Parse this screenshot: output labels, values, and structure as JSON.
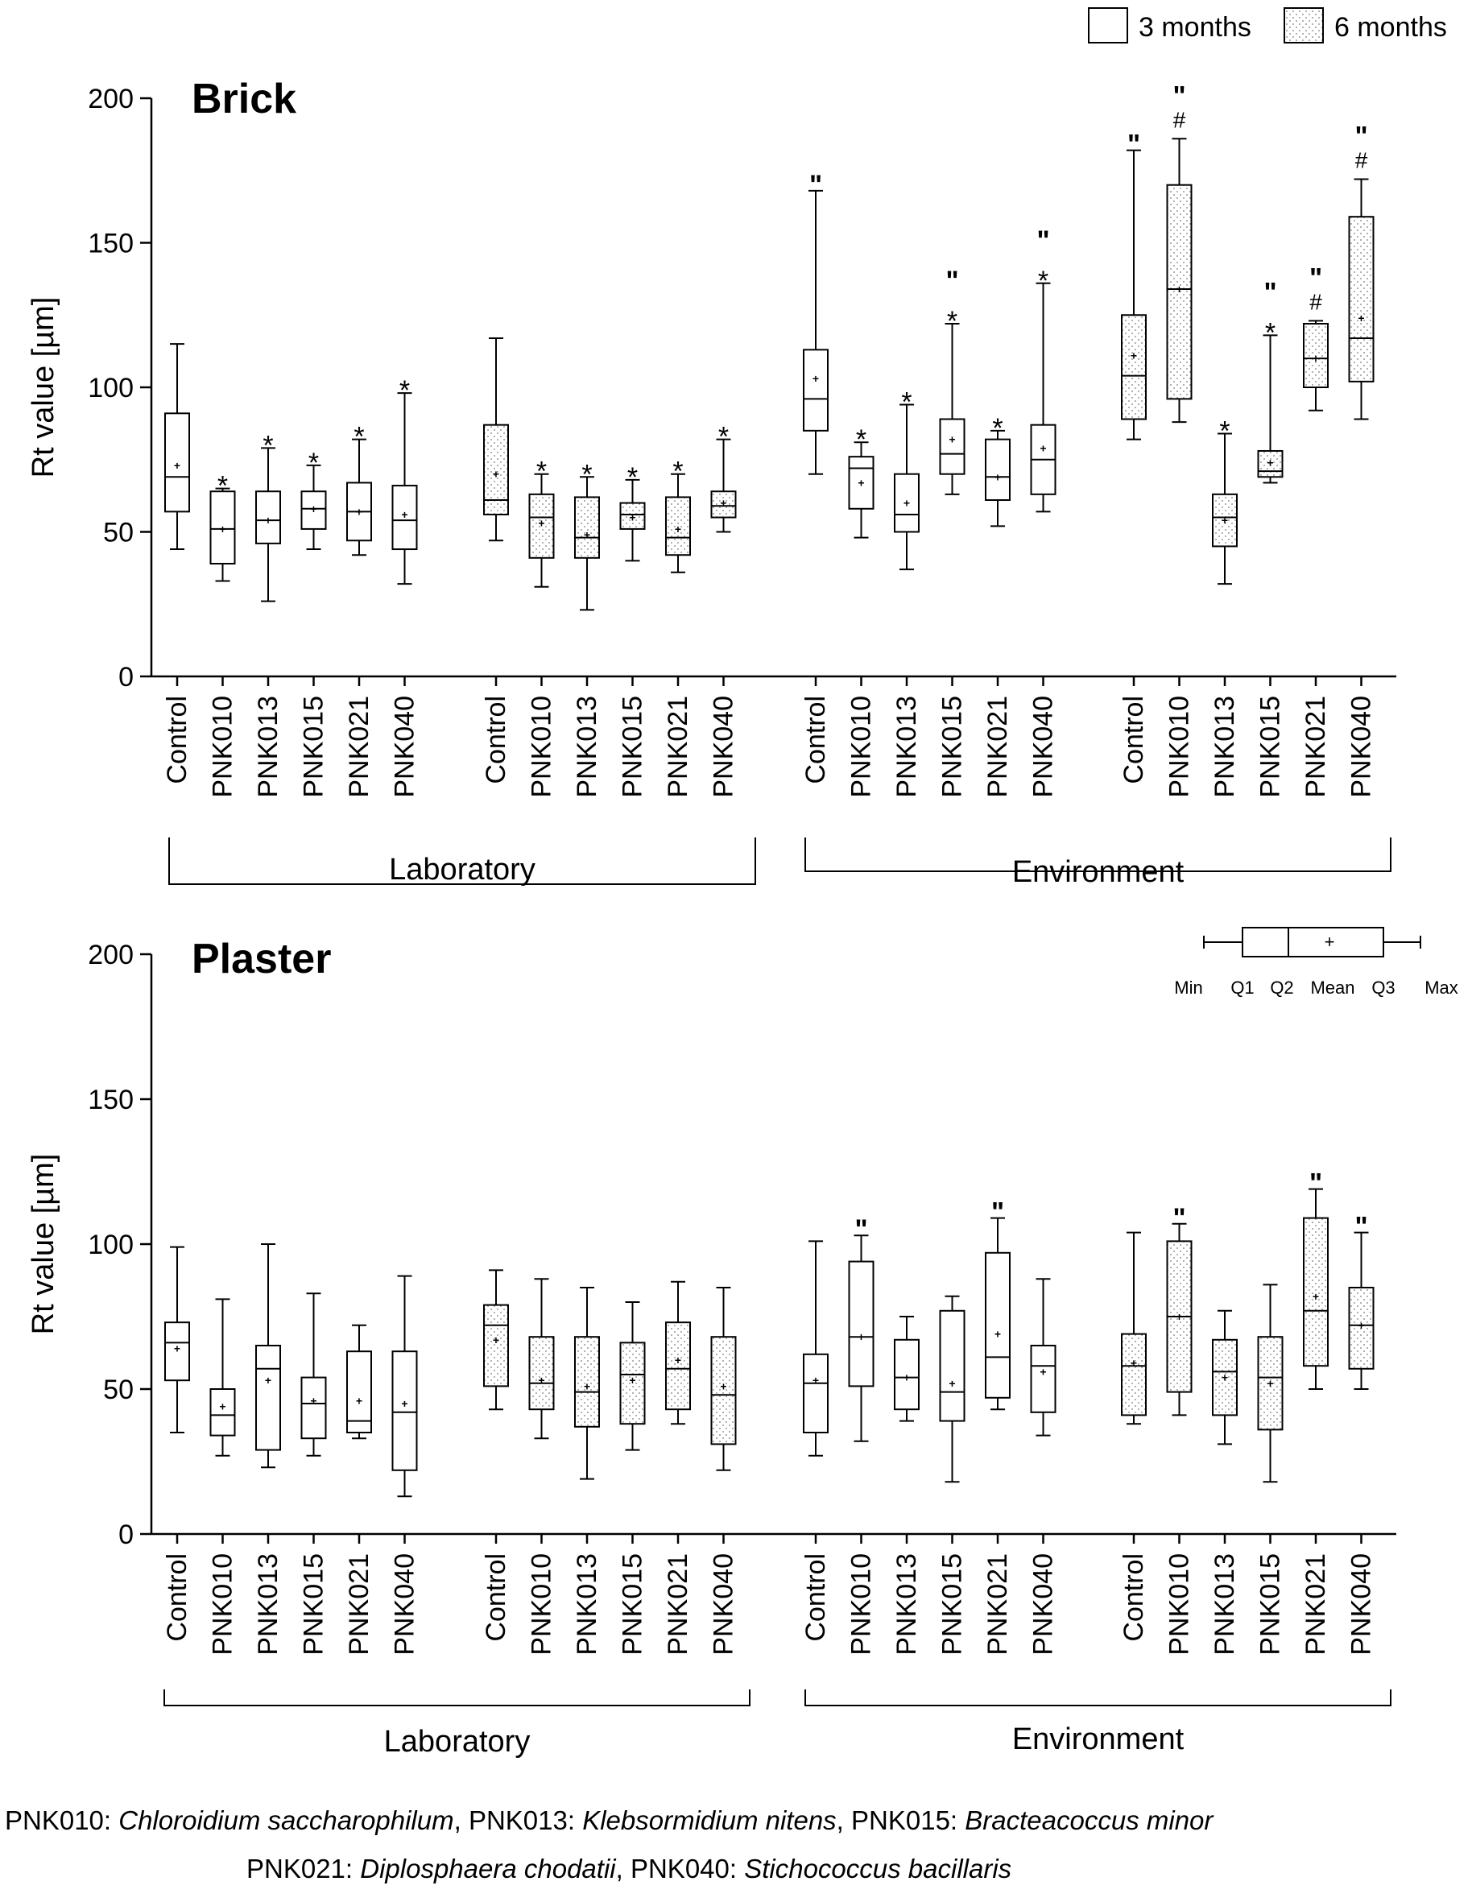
{
  "legend": {
    "items": [
      {
        "label": "3 months",
        "fill": "plain"
      },
      {
        "label": "6 months",
        "fill": "dotted"
      }
    ]
  },
  "colors": {
    "stroke": "#000000",
    "background": "#ffffff",
    "dots": "#7a7a7a"
  },
  "key": {
    "labels": [
      "Min",
      "Q1",
      "Q2",
      "Mean",
      "Q3",
      "Max"
    ]
  },
  "chart_data": [
    {
      "type": "box",
      "title": "Brick",
      "ylabel": "Rt value [µm]",
      "ylim": [
        0,
        200
      ],
      "yticks": [
        0,
        50,
        100,
        150,
        200
      ],
      "grid": false,
      "categories": [
        "Control",
        "PNK010",
        "PNK013",
        "PNK015",
        "PNK021",
        "PNK040"
      ],
      "groups": [
        {
          "label": "Laboratory",
          "blocks": [
            {
              "period": "3 months",
              "boxes": [
                {
                  "category": "Control",
                  "min": 44,
                  "q1": 57,
                  "median": 69,
                  "mean": 73,
                  "q3": 91,
                  "max": 115,
                  "marks": []
                },
                {
                  "category": "PNK010",
                  "min": 33,
                  "q1": 39,
                  "median": 51,
                  "mean": 51,
                  "q3": 64,
                  "max": 65,
                  "marks": [
                    "*"
                  ]
                },
                {
                  "category": "PNK013",
                  "min": 26,
                  "q1": 46,
                  "median": 54,
                  "mean": 54,
                  "q3": 64,
                  "max": 79,
                  "marks": [
                    "*"
                  ]
                },
                {
                  "category": "PNK015",
                  "min": 44,
                  "q1": 51,
                  "median": 58,
                  "mean": 58,
                  "q3": 64,
                  "max": 73,
                  "marks": [
                    "*"
                  ]
                },
                {
                  "category": "PNK021",
                  "min": 42,
                  "q1": 47,
                  "median": 57,
                  "mean": 57,
                  "q3": 67,
                  "max": 82,
                  "marks": [
                    "*"
                  ]
                },
                {
                  "category": "PNK040",
                  "min": 32,
                  "q1": 44,
                  "median": 54,
                  "mean": 56,
                  "q3": 66,
                  "max": 98,
                  "marks": [
                    "*"
                  ]
                }
              ]
            },
            {
              "period": "6 months",
              "boxes": [
                {
                  "category": "Control",
                  "min": 47,
                  "q1": 56,
                  "median": 61,
                  "mean": 70,
                  "q3": 87,
                  "max": 117,
                  "marks": []
                },
                {
                  "category": "PNK010",
                  "min": 31,
                  "q1": 41,
                  "median": 55,
                  "mean": 53,
                  "q3": 63,
                  "max": 70,
                  "marks": [
                    "*"
                  ]
                },
                {
                  "category": "PNK013",
                  "min": 23,
                  "q1": 41,
                  "median": 48,
                  "mean": 49,
                  "q3": 62,
                  "max": 69,
                  "marks": [
                    "*"
                  ]
                },
                {
                  "category": "PNK015",
                  "min": 40,
                  "q1": 51,
                  "median": 56,
                  "mean": 55,
                  "q3": 60,
                  "max": 68,
                  "marks": [
                    "*"
                  ]
                },
                {
                  "category": "PNK021",
                  "min": 36,
                  "q1": 42,
                  "median": 48,
                  "mean": 51,
                  "q3": 62,
                  "max": 70,
                  "marks": [
                    "*"
                  ]
                },
                {
                  "category": "PNK040",
                  "min": 50,
                  "q1": 55,
                  "median": 59,
                  "mean": 60,
                  "q3": 64,
                  "max": 82,
                  "marks": [
                    "*"
                  ]
                }
              ]
            }
          ]
        },
        {
          "label": "Environment",
          "blocks": [
            {
              "period": "3 months",
              "boxes": [
                {
                  "category": "Control",
                  "min": 70,
                  "q1": 85,
                  "median": 96,
                  "mean": 103,
                  "q3": 113,
                  "max": 168,
                  "marks": [
                    "\""
                  ]
                },
                {
                  "category": "PNK010",
                  "min": 48,
                  "q1": 58,
                  "median": 72,
                  "mean": 67,
                  "q3": 76,
                  "max": 81,
                  "marks": [
                    "*"
                  ]
                },
                {
                  "category": "PNK013",
                  "min": 37,
                  "q1": 50,
                  "median": 56,
                  "mean": 60,
                  "q3": 70,
                  "max": 94,
                  "marks": [
                    "*"
                  ]
                },
                {
                  "category": "PNK015",
                  "min": 63,
                  "q1": 70,
                  "median": 77,
                  "mean": 82,
                  "q3": 89,
                  "max": 122,
                  "marks": [
                    "\"",
                    "*"
                  ]
                },
                {
                  "category": "PNK021",
                  "min": 52,
                  "q1": 61,
                  "median": 69,
                  "mean": 69,
                  "q3": 82,
                  "max": 85,
                  "marks": [
                    "*"
                  ]
                },
                {
                  "category": "PNK040",
                  "min": 57,
                  "q1": 63,
                  "median": 75,
                  "mean": 79,
                  "q3": 87,
                  "max": 136,
                  "marks": [
                    "\"",
                    "*"
                  ]
                }
              ]
            },
            {
              "period": "6 months",
              "boxes": [
                {
                  "category": "Control",
                  "min": 82,
                  "q1": 89,
                  "median": 104,
                  "mean": 111,
                  "q3": 125,
                  "max": 182,
                  "marks": [
                    "\""
                  ]
                },
                {
                  "category": "PNK010",
                  "min": 88,
                  "q1": 96,
                  "median": 134,
                  "mean": 134,
                  "q3": 170,
                  "max": 186,
                  "marks": [
                    "\"",
                    "#"
                  ]
                },
                {
                  "category": "PNK013",
                  "min": 32,
                  "q1": 45,
                  "median": 55,
                  "mean": 54,
                  "q3": 63,
                  "max": 84,
                  "marks": [
                    "*"
                  ]
                },
                {
                  "category": "PNK015",
                  "min": 67,
                  "q1": 69,
                  "median": 71,
                  "mean": 74,
                  "q3": 78,
                  "max": 118,
                  "marks": [
                    "\"",
                    "*"
                  ]
                },
                {
                  "category": "PNK021",
                  "min": 92,
                  "q1": 100,
                  "median": 110,
                  "mean": 110,
                  "q3": 122,
                  "max": 123,
                  "marks": [
                    "\"",
                    "#"
                  ]
                },
                {
                  "category": "PNK040",
                  "min": 89,
                  "q1": 102,
                  "median": 117,
                  "mean": 124,
                  "q3": 159,
                  "max": 172,
                  "marks": [
                    "\"",
                    "#"
                  ]
                }
              ]
            }
          ]
        }
      ]
    },
    {
      "type": "box",
      "title": "Plaster",
      "ylabel": "Rt value [µm]",
      "ylim": [
        0,
        200
      ],
      "yticks": [
        0,
        50,
        100,
        150,
        200
      ],
      "grid": false,
      "categories": [
        "Control",
        "PNK010",
        "PNK013",
        "PNK015",
        "PNK021",
        "PNK040"
      ],
      "groups": [
        {
          "label": "Laboratory",
          "blocks": [
            {
              "period": "3 months",
              "boxes": [
                {
                  "category": "Control",
                  "min": 35,
                  "q1": 53,
                  "median": 66,
                  "mean": 64,
                  "q3": 73,
                  "max": 99,
                  "marks": []
                },
                {
                  "category": "PNK010",
                  "min": 27,
                  "q1": 34,
                  "median": 41,
                  "mean": 44,
                  "q3": 50,
                  "max": 81,
                  "marks": []
                },
                {
                  "category": "PNK013",
                  "min": 23,
                  "q1": 29,
                  "median": 57,
                  "mean": 53,
                  "q3": 65,
                  "max": 100,
                  "marks": []
                },
                {
                  "category": "PNK015",
                  "min": 27,
                  "q1": 33,
                  "median": 45,
                  "mean": 46,
                  "q3": 54,
                  "max": 83,
                  "marks": []
                },
                {
                  "category": "PNK021",
                  "min": 33,
                  "q1": 35,
                  "median": 39,
                  "mean": 46,
                  "q3": 63,
                  "max": 72,
                  "marks": []
                },
                {
                  "category": "PNK040",
                  "min": 13,
                  "q1": 22,
                  "median": 42,
                  "mean": 45,
                  "q3": 63,
                  "max": 89,
                  "marks": []
                }
              ]
            },
            {
              "period": "6 months",
              "boxes": [
                {
                  "category": "Control",
                  "min": 43,
                  "q1": 51,
                  "median": 72,
                  "mean": 67,
                  "q3": 79,
                  "max": 91,
                  "marks": []
                },
                {
                  "category": "PNK010",
                  "min": 33,
                  "q1": 43,
                  "median": 52,
                  "mean": 53,
                  "q3": 68,
                  "max": 88,
                  "marks": []
                },
                {
                  "category": "PNK013",
                  "min": 19,
                  "q1": 37,
                  "median": 49,
                  "mean": 51,
                  "q3": 68,
                  "max": 85,
                  "marks": []
                },
                {
                  "category": "PNK015",
                  "min": 29,
                  "q1": 38,
                  "median": 55,
                  "mean": 53,
                  "q3": 66,
                  "max": 80,
                  "marks": []
                },
                {
                  "category": "PNK021",
                  "min": 38,
                  "q1": 43,
                  "median": 57,
                  "mean": 60,
                  "q3": 73,
                  "max": 87,
                  "marks": []
                },
                {
                  "category": "PNK040",
                  "min": 22,
                  "q1": 31,
                  "median": 48,
                  "mean": 51,
                  "q3": 68,
                  "max": 85,
                  "marks": []
                }
              ]
            }
          ]
        },
        {
          "label": "Environment",
          "blocks": [
            {
              "period": "3 months",
              "boxes": [
                {
                  "category": "Control",
                  "min": 27,
                  "q1": 35,
                  "median": 52,
                  "mean": 53,
                  "q3": 62,
                  "max": 101,
                  "marks": []
                },
                {
                  "category": "PNK010",
                  "min": 32,
                  "q1": 51,
                  "median": 68,
                  "mean": 68,
                  "q3": 94,
                  "max": 103,
                  "marks": [
                    "\""
                  ]
                },
                {
                  "category": "PNK013",
                  "min": 39,
                  "q1": 43,
                  "median": 54,
                  "mean": 54,
                  "q3": 67,
                  "max": 75,
                  "marks": []
                },
                {
                  "category": "PNK015",
                  "min": 18,
                  "q1": 39,
                  "median": 49,
                  "mean": 52,
                  "q3": 77,
                  "max": 82,
                  "marks": []
                },
                {
                  "category": "PNK021",
                  "min": 43,
                  "q1": 47,
                  "median": 61,
                  "mean": 69,
                  "q3": 97,
                  "max": 109,
                  "marks": [
                    "\""
                  ]
                },
                {
                  "category": "PNK040",
                  "min": 34,
                  "q1": 42,
                  "median": 58,
                  "mean": 56,
                  "q3": 65,
                  "max": 88,
                  "marks": []
                }
              ]
            },
            {
              "period": "6 months",
              "boxes": [
                {
                  "category": "Control",
                  "min": 38,
                  "q1": 41,
                  "median": 58,
                  "mean": 59,
                  "q3": 69,
                  "max": 104,
                  "marks": []
                },
                {
                  "category": "PNK010",
                  "min": 41,
                  "q1": 49,
                  "median": 75,
                  "mean": 75,
                  "q3": 101,
                  "max": 107,
                  "marks": [
                    "\""
                  ]
                },
                {
                  "category": "PNK013",
                  "min": 31,
                  "q1": 41,
                  "median": 56,
                  "mean": 54,
                  "q3": 67,
                  "max": 77,
                  "marks": []
                },
                {
                  "category": "PNK015",
                  "min": 18,
                  "q1": 36,
                  "median": 54,
                  "mean": 52,
                  "q3": 68,
                  "max": 86,
                  "marks": []
                },
                {
                  "category": "PNK021",
                  "min": 50,
                  "q1": 58,
                  "median": 77,
                  "mean": 82,
                  "q3": 109,
                  "max": 119,
                  "marks": [
                    "\""
                  ]
                },
                {
                  "category": "PNK040",
                  "min": 50,
                  "q1": 57,
                  "median": 72,
                  "mean": 72,
                  "q3": 85,
                  "max": 104,
                  "marks": [
                    "\""
                  ]
                }
              ]
            }
          ]
        }
      ]
    }
  ],
  "footnotes": [
    [
      {
        "code": "PNK010",
        "sep": ": ",
        "name": "Chloroidium saccharophilum",
        "tail": ", "
      },
      {
        "code": "PNK013",
        "sep": ": ",
        "name": "Klebsormidium nitens",
        "tail": ", "
      },
      {
        "code": "PNK015",
        "sep": ": ",
        "name": "Bracteacoccus minor",
        "tail": ""
      }
    ],
    [
      {
        "code": "PNK021",
        "sep": ": ",
        "name": "Diplosphaera chodatii",
        "tail": ", "
      },
      {
        "code": "PNK040",
        "sep": ": ",
        "name": "Stichococcus bacillaris",
        "tail": ""
      }
    ]
  ]
}
